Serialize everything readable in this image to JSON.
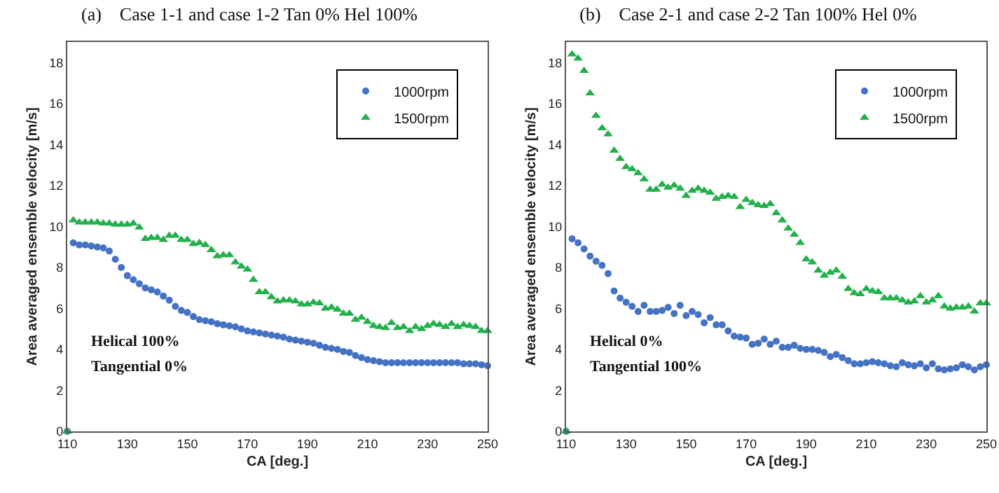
{
  "chart_data": [
    {
      "type": "scatter",
      "title": "(a)    Case 1-1 and case 1-2 Tan 0% Hel 100%",
      "xlabel": "CA [deg.]",
      "ylabel": "Area averaged ensemble velocity [m/s]",
      "annotations": [
        "Helical 100%",
        "Tangential 0%"
      ],
      "x": [
        110,
        112,
        114,
        116,
        118,
        120,
        122,
        124,
        126,
        128,
        130,
        132,
        134,
        136,
        138,
        140,
        142,
        144,
        146,
        148,
        150,
        152,
        154,
        156,
        158,
        160,
        162,
        164,
        166,
        168,
        170,
        172,
        174,
        176,
        178,
        180,
        182,
        184,
        186,
        188,
        190,
        192,
        194,
        196,
        198,
        200,
        202,
        204,
        206,
        208,
        210,
        212,
        214,
        216,
        218,
        220,
        222,
        224,
        226,
        228,
        230,
        232,
        234,
        236,
        238,
        240,
        242,
        244,
        246,
        248,
        250
      ],
      "series": [
        {
          "name": "1000rpm",
          "color": "#4472c4",
          "marker": "circle",
          "values": [
            0,
            9.2,
            9.1,
            9.1,
            9.05,
            9.0,
            8.95,
            8.8,
            8.4,
            8.0,
            7.6,
            7.4,
            7.2,
            7.0,
            6.9,
            6.8,
            6.6,
            6.4,
            6.1,
            5.9,
            5.8,
            5.6,
            5.45,
            5.4,
            5.35,
            5.25,
            5.2,
            5.15,
            5.1,
            5.0,
            4.9,
            4.85,
            4.8,
            4.75,
            4.7,
            4.65,
            4.6,
            4.5,
            4.45,
            4.4,
            4.35,
            4.3,
            4.2,
            4.1,
            4.05,
            4.0,
            3.9,
            3.85,
            3.7,
            3.6,
            3.5,
            3.45,
            3.4,
            3.35,
            3.35,
            3.35,
            3.35,
            3.35,
            3.35,
            3.35,
            3.35,
            3.35,
            3.35,
            3.35,
            3.35,
            3.35,
            3.3,
            3.3,
            3.3,
            3.25,
            3.2
          ]
        },
        {
          "name": "1500rpm",
          "color": "#22b04b",
          "marker": "triangle",
          "values": [
            0,
            10.3,
            10.2,
            10.2,
            10.2,
            10.2,
            10.15,
            10.15,
            10.1,
            10.1,
            10.1,
            10.15,
            9.95,
            9.4,
            9.45,
            9.45,
            9.35,
            9.55,
            9.55,
            9.35,
            9.35,
            9.15,
            9.2,
            9.1,
            8.85,
            8.55,
            8.6,
            8.6,
            8.25,
            8.05,
            7.9,
            7.4,
            6.8,
            6.8,
            6.55,
            6.35,
            6.4,
            6.4,
            6.35,
            6.2,
            6.2,
            6.3,
            6.25,
            6.0,
            6.05,
            5.95,
            5.75,
            5.75,
            5.45,
            5.55,
            5.35,
            5.15,
            5.1,
            5.05,
            5.3,
            5.05,
            5.1,
            4.9,
            5.1,
            5.0,
            5.15,
            5.25,
            5.2,
            5.1,
            5.25,
            5.1,
            5.2,
            5.15,
            5.1,
            4.9,
            4.9
          ]
        }
      ],
      "xlim": [
        110,
        250
      ],
      "xticks": [
        110,
        130,
        150,
        170,
        190,
        210,
        230,
        250
      ],
      "ylim": [
        0,
        19
      ],
      "yticks": [
        0,
        2,
        4,
        6,
        8,
        10,
        12,
        14,
        16,
        18
      ],
      "grid": false,
      "legend": "top right"
    },
    {
      "type": "scatter",
      "title": "(b)    Case 2-1 and case 2-2 Tan 100% Hel 0%",
      "xlabel": "CA [deg.]",
      "ylabel": "Area averaged ensemble velocity [m/s]",
      "annotations": [
        "Helical 0%",
        "Tangential 100%"
      ],
      "x": [
        110,
        112,
        114,
        116,
        118,
        120,
        122,
        124,
        126,
        128,
        130,
        132,
        134,
        136,
        138,
        140,
        142,
        144,
        146,
        148,
        150,
        152,
        154,
        156,
        158,
        160,
        162,
        164,
        166,
        168,
        170,
        172,
        174,
        176,
        178,
        180,
        182,
        184,
        186,
        188,
        190,
        192,
        194,
        196,
        198,
        200,
        202,
        204,
        206,
        208,
        210,
        212,
        214,
        216,
        218,
        220,
        222,
        224,
        226,
        228,
        230,
        232,
        234,
        236,
        238,
        240,
        242,
        244,
        246,
        248,
        250
      ],
      "series": [
        {
          "name": "1000rpm",
          "color": "#4472c4",
          "marker": "circle",
          "values": [
            0,
            9.4,
            9.2,
            8.9,
            8.55,
            8.3,
            8.1,
            7.7,
            6.85,
            6.5,
            6.3,
            6.1,
            5.85,
            6.15,
            5.85,
            5.85,
            5.9,
            6.05,
            5.75,
            6.15,
            5.65,
            5.85,
            5.7,
            5.3,
            5.55,
            5.2,
            5.2,
            4.9,
            4.65,
            4.6,
            4.55,
            4.25,
            4.3,
            4.5,
            4.25,
            4.4,
            4.1,
            4.1,
            4.2,
            4.05,
            4.0,
            4.0,
            3.95,
            3.85,
            3.65,
            3.75,
            3.6,
            3.45,
            3.3,
            3.3,
            3.35,
            3.4,
            3.35,
            3.3,
            3.2,
            3.15,
            3.35,
            3.25,
            3.2,
            3.3,
            3.1,
            3.3,
            3.05,
            3.0,
            3.05,
            3.1,
            3.25,
            3.15,
            3.0,
            3.15,
            3.25
          ]
        },
        {
          "name": "1500rpm",
          "color": "#22b04b",
          "marker": "triangle",
          "values": [
            0,
            18.4,
            18.2,
            17.6,
            16.5,
            15.4,
            14.8,
            14.5,
            13.7,
            13.3,
            12.9,
            12.8,
            12.6,
            12.3,
            11.8,
            11.8,
            12.05,
            11.9,
            12.0,
            11.85,
            11.5,
            11.75,
            11.85,
            11.75,
            11.65,
            11.35,
            11.45,
            11.5,
            11.45,
            10.95,
            11.3,
            11.15,
            11.05,
            11.0,
            11.1,
            10.65,
            10.3,
            9.9,
            9.6,
            9.2,
            8.4,
            8.25,
            7.85,
            7.6,
            7.75,
            7.85,
            7.55,
            6.95,
            6.75,
            6.7,
            6.95,
            6.85,
            6.8,
            6.5,
            6.5,
            6.5,
            6.4,
            6.3,
            6.35,
            6.6,
            6.3,
            6.4,
            6.6,
            6.1,
            6.0,
            6.05,
            6.05,
            6.1,
            5.85,
            6.25,
            6.25
          ]
        }
      ],
      "xlim": [
        110,
        250
      ],
      "xticks": [
        110,
        130,
        150,
        170,
        190,
        210,
        230,
        250
      ],
      "ylim": [
        0,
        19
      ],
      "yticks": [
        0,
        2,
        4,
        6,
        8,
        10,
        12,
        14,
        16,
        18
      ],
      "grid": false,
      "legend": "top right"
    }
  ]
}
